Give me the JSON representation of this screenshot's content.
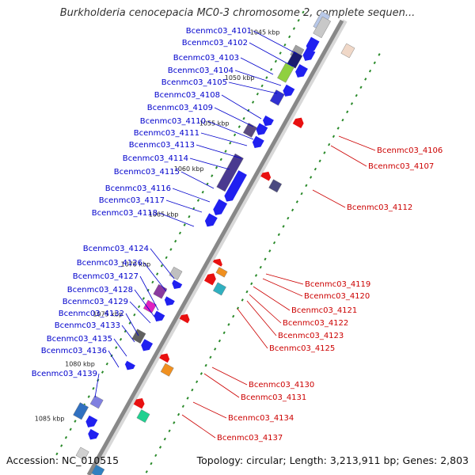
{
  "header": {
    "title": "Burkholderia cenocepacia MC0-3 chromosome 2, complete sequen..."
  },
  "footer": {
    "accession": "Accession: NC_010515",
    "summary": "Topology: circular; Length: 3,213,911 bp; Genes: 2,803"
  },
  "colors": {
    "forward_strand": "#2020f0",
    "reverse_strand": "#e81010",
    "backbone": "#888888",
    "tick_dots": "#2a8a2a"
  },
  "kbp_markers": [
    "1045 kbp",
    "1050 kbp",
    "1055 kbp",
    "1060 kbp",
    "1065 kbp",
    "1070 kbp",
    "1075 kbp",
    "1080 kbp",
    "1085 kbp"
  ],
  "left_genes": [
    "Bcenmc03_4101",
    "Bcenmc03_4102",
    "Bcenmc03_4103",
    "Bcenmc03_4104",
    "Bcenmc03_4105",
    "Bcenmc03_4108",
    "Bcenmc03_4109",
    "Bcenmc03_4110",
    "Bcenmc03_4111",
    "Bcenmc03_4113",
    "Bcenmc03_4114",
    "Bcenmc03_4115",
    "Bcenmc03_4116",
    "Bcenmc03_4117",
    "Bcenmc03_4118",
    "Bcenmc03_4124",
    "Bcenmc03_4126",
    "Bcenmc03_4127",
    "Bcenmc03_4128",
    "Bcenmc03_4129",
    "Bcenmc03_4132",
    "Bcenmc03_4133",
    "Bcenmc03_4135",
    "Bcenmc03_4136",
    "Bcenmc03_4139"
  ],
  "right_genes": [
    "Bcenmc03_4106",
    "Bcenmc03_4107",
    "Bcenmc03_4112",
    "Bcenmc03_4119",
    "Bcenmc03_4120",
    "Bcenmc03_4121",
    "Bcenmc03_4122",
    "Bcenmc03_4123",
    "Bcenmc03_4125",
    "Bcenmc03_4130",
    "Bcenmc03_4131",
    "Bcenmc03_4134",
    "Bcenmc03_4137"
  ]
}
